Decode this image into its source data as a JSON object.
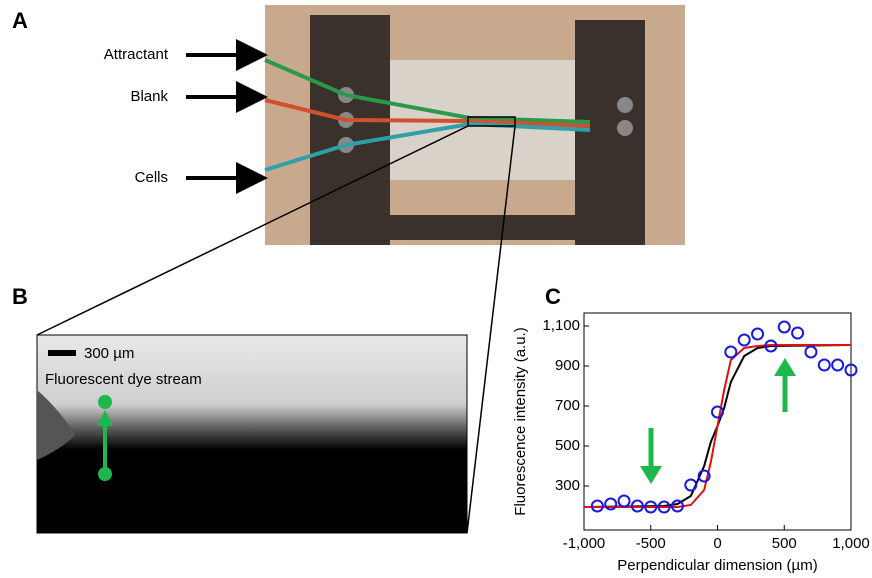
{
  "panels": {
    "a": "A",
    "b": "B",
    "c": "C"
  },
  "photo_labels": [
    "Attractant",
    "Blank",
    "Cells"
  ],
  "scale_bar": "300 µm",
  "stream_label": "Fluorescent dye stream",
  "chart_data": {
    "type": "scatter",
    "xlabel": "Perpendicular dimension (µm)",
    "ylabel": "Fluorescence intensity (a.u.)",
    "xlim": [
      -1000,
      1000
    ],
    "ylim": [
      80,
      1165
    ],
    "xticks": [
      {
        "value": -1000,
        "label": "-1,000"
      },
      -500,
      0,
      500,
      {
        "value": 1000,
        "label": "1,000"
      }
    ],
    "yticks": [
      300,
      500,
      700,
      900,
      {
        "value": 1100,
        "label": "1,100"
      }
    ],
    "series": [
      {
        "mode": "markers",
        "color": "#1a1adc",
        "x": [
          -900,
          -800,
          -700,
          -600,
          -500,
          -400,
          -300,
          -200,
          -100,
          0,
          100,
          200,
          300,
          400,
          500,
          600,
          700,
          800,
          900,
          1000
        ],
        "values": [
          200,
          210,
          225,
          200,
          195,
          195,
          200,
          305,
          350,
          670,
          970,
          1030,
          1060,
          1000,
          1095,
          1065,
          970,
          905,
          905,
          880
        ]
      },
      {
        "mode": "line",
        "color": "#000000",
        "x": [
          -1000,
          -400,
          -300,
          -200,
          -100,
          -50,
          0,
          50,
          100,
          200,
          300,
          400,
          1000
        ],
        "values": [
          195,
          200,
          210,
          250,
          400,
          520,
          600,
          690,
          820,
          950,
          990,
          1000,
          1005
        ]
      },
      {
        "mode": "line",
        "color": "#e01010",
        "x": [
          -1000,
          -400,
          -300,
          -200,
          -100,
          -50,
          0,
          50,
          100,
          200,
          300,
          400,
          1000
        ],
        "values": [
          195,
          195,
          195,
          205,
          280,
          420,
          600,
          780,
          930,
          990,
          1000,
          1005,
          1005
        ]
      }
    ]
  }
}
